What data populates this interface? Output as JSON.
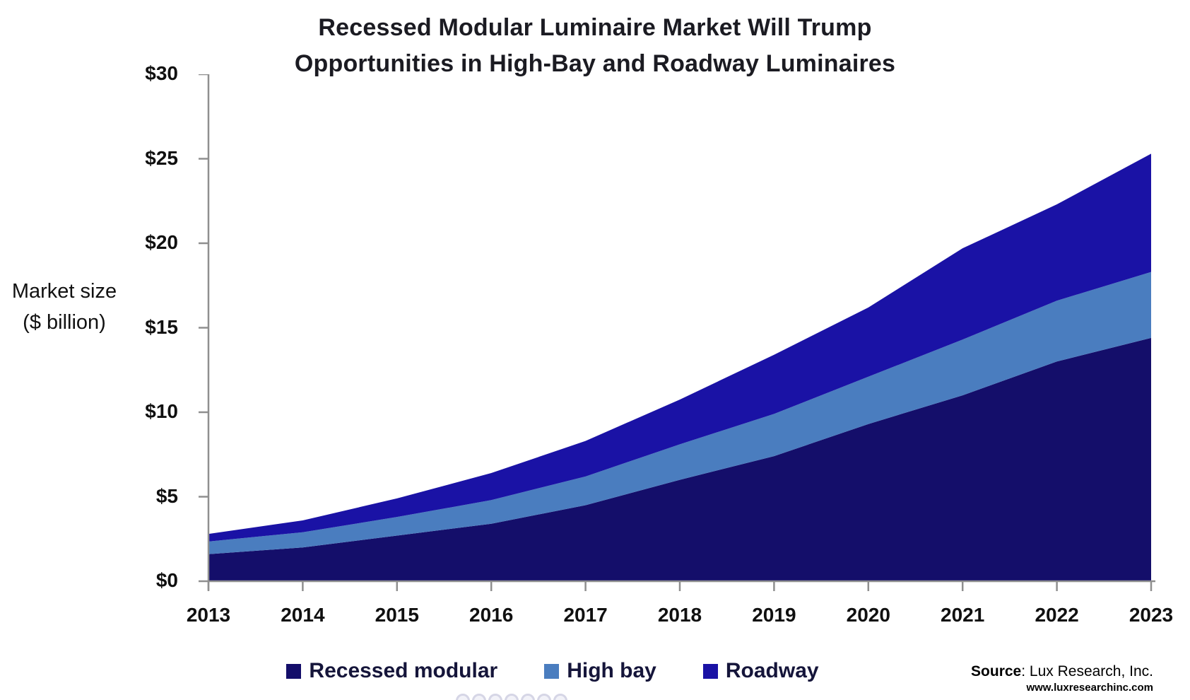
{
  "title": {
    "line1": "Recessed Modular Luminaire Market Will Trump",
    "line2": "Opportunities in High-Bay and Roadway Luminaires"
  },
  "y_axis": {
    "label_line1": "Market size",
    "label_line2": "($ billion)",
    "ticks_top_to_bottom": [
      "$30",
      "$25",
      "$20",
      "$15",
      "$10",
      "$5",
      "$0"
    ]
  },
  "x_axis": {
    "years": [
      "2013",
      "2014",
      "2015",
      "2016",
      "2017",
      "2018",
      "2019",
      "2020",
      "2021",
      "2022",
      "2023"
    ]
  },
  "legend": [
    {
      "label": "Recessed modular",
      "color": "#140e6a"
    },
    {
      "label": "High bay",
      "color": "#4a7dbf"
    },
    {
      "label": "Roadway",
      "color": "#1a12a5"
    }
  ],
  "source": {
    "prefix": "Source",
    "rest": ": Lux Research, Inc.",
    "url": "www.luxresearchinc.com"
  },
  "colors": {
    "axis": "#8f8f8f",
    "title_text": "#1b1b22",
    "recessed_modular": "#140e6a",
    "high_bay": "#4a7dbf",
    "roadway": "#1a12a5"
  },
  "chart_data": {
    "type": "area",
    "stacked": true,
    "title": "Recessed Modular Luminaire Market Will Trump Opportunities in High-Bay and Roadway Luminaires",
    "xlabel": "",
    "ylabel": "Market size ($ billion)",
    "x": [
      2013,
      2014,
      2015,
      2016,
      2017,
      2018,
      2019,
      2020,
      2021,
      2022,
      2023
    ],
    "ylim": [
      0,
      30
    ],
    "y_tick_step": 5,
    "grid": false,
    "legend_position": "bottom",
    "series": [
      {
        "name": "Recessed modular",
        "color": "#140e6a",
        "values": [
          1.6,
          2.0,
          2.7,
          3.4,
          4.5,
          6.0,
          7.4,
          9.3,
          11.0,
          13.0,
          14.4
        ]
      },
      {
        "name": "High bay",
        "color": "#4a7dbf",
        "values": [
          0.75,
          0.9,
          1.1,
          1.4,
          1.7,
          2.1,
          2.5,
          2.8,
          3.3,
          3.6,
          3.9
        ]
      },
      {
        "name": "Roadway",
        "color": "#1a12a5",
        "values": [
          0.45,
          0.7,
          1.1,
          1.6,
          2.1,
          2.65,
          3.5,
          4.1,
          5.4,
          5.7,
          7.0
        ]
      }
    ],
    "stacked_totals": [
      2.8,
      3.6,
      4.9,
      6.4,
      8.3,
      10.75,
      13.4,
      16.2,
      19.7,
      22.3,
      25.3
    ]
  }
}
